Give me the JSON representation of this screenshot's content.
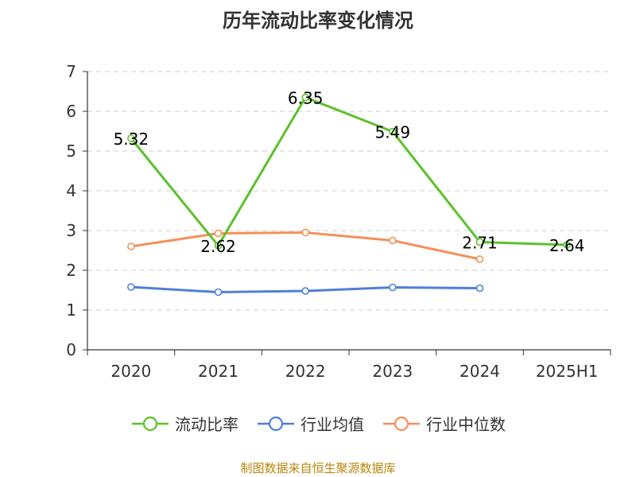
{
  "chart_data": {
    "type": "line",
    "title": "历年流动比率变化情况",
    "categories": [
      "2020",
      "2021",
      "2022",
      "2023",
      "2024",
      "2025H1"
    ],
    "ylim": [
      0,
      7
    ],
    "yticks": [
      "0",
      "1",
      "2",
      "3",
      "4",
      "5",
      "6",
      "7"
    ],
    "grid": true,
    "legend_position": "bottom",
    "series": [
      {
        "name": "流动比率",
        "color": "#5cc12a",
        "values": [
          5.32,
          2.62,
          6.35,
          5.49,
          2.71,
          2.64
        ],
        "labels": [
          "5.32",
          "2.62",
          "6.35",
          "5.49",
          "2.71",
          "2.64"
        ]
      },
      {
        "name": "行业均值",
        "color": "#4f7fdc",
        "values": [
          1.58,
          1.45,
          1.48,
          1.57,
          1.55,
          null
        ]
      },
      {
        "name": "行业中位数",
        "color": "#f4905a",
        "values": [
          2.6,
          2.93,
          2.95,
          2.75,
          2.28,
          null
        ]
      }
    ]
  },
  "source": "制图数据来自恒生聚源数据库"
}
